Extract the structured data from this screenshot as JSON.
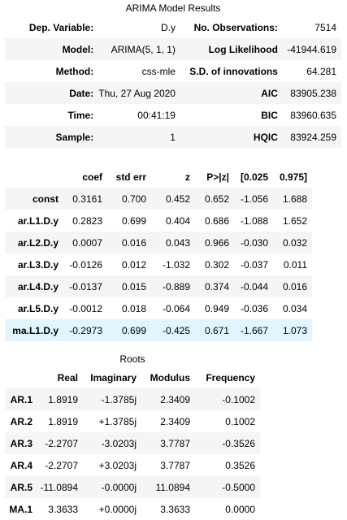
{
  "summary": {
    "caption": "ARIMA Model Results",
    "rows": [
      [
        "Dep. Variable:",
        "D.y",
        "No. Observations:",
        "7514"
      ],
      [
        "Model:",
        "ARIMA(5, 1, 1)",
        "Log Likelihood",
        "-41944.619"
      ],
      [
        "Method:",
        "css-mle",
        "S.D. of innovations",
        "64.281"
      ],
      [
        "Date:",
        "Thu, 27 Aug 2020",
        "AIC",
        "83905.238"
      ],
      [
        "Time:",
        "00:41:19",
        "BIC",
        "83960.635"
      ],
      [
        "Sample:",
        "1",
        "HQIC",
        "83924.259"
      ]
    ]
  },
  "coef_table": {
    "headers": [
      "",
      "coef",
      "std err",
      "z",
      "P>|z|",
      "[0.025",
      "0.975]"
    ],
    "rows": [
      [
        "const",
        "0.3161",
        "0.700",
        "0.452",
        "0.652",
        "-1.056",
        "1.688"
      ],
      [
        "ar.L1.D.y",
        "0.2823",
        "0.699",
        "0.404",
        "0.686",
        "-1.088",
        "1.652"
      ],
      [
        "ar.L2.D.y",
        "0.0007",
        "0.016",
        "0.043",
        "0.966",
        "-0.030",
        "0.032"
      ],
      [
        "ar.L3.D.y",
        "-0.0126",
        "0.012",
        "-1.032",
        "0.302",
        "-0.037",
        "0.011"
      ],
      [
        "ar.L4.D.y",
        "-0.0137",
        "0.015",
        "-0.889",
        "0.374",
        "-0.044",
        "0.016"
      ],
      [
        "ar.L5.D.y",
        "-0.0012",
        "0.018",
        "-0.064",
        "0.949",
        "-0.036",
        "0.034"
      ],
      [
        "ma.L1.D.y",
        "-0.2973",
        "0.699",
        "-0.425",
        "0.671",
        "-1.667",
        "1.073"
      ]
    ],
    "highlight_color": "#e1f5fe"
  },
  "roots": {
    "caption": "Roots",
    "headers": [
      "",
      "Real",
      "Imaginary",
      "Modulus",
      "Frequency"
    ],
    "rows": [
      [
        "AR.1",
        "1.8919",
        "-1.3785j",
        "2.3409",
        "-0.1002"
      ],
      [
        "AR.2",
        "1.8919",
        "+1.3785j",
        "2.3409",
        "0.1002"
      ],
      [
        "AR.3",
        "-2.2707",
        "-3.0203j",
        "3.7787",
        "-0.3526"
      ],
      [
        "AR.4",
        "-2.2707",
        "+3.0203j",
        "3.7787",
        "0.3526"
      ],
      [
        "AR.5",
        "-11.0894",
        "-0.0000j",
        "11.0894",
        "-0.5000"
      ],
      [
        "MA.1",
        "3.3633",
        "+0.0000j",
        "3.3633",
        "0.0000"
      ]
    ]
  },
  "colors": {
    "stripe": "#f5f5f5",
    "hover_row": "#e1f5fe"
  }
}
